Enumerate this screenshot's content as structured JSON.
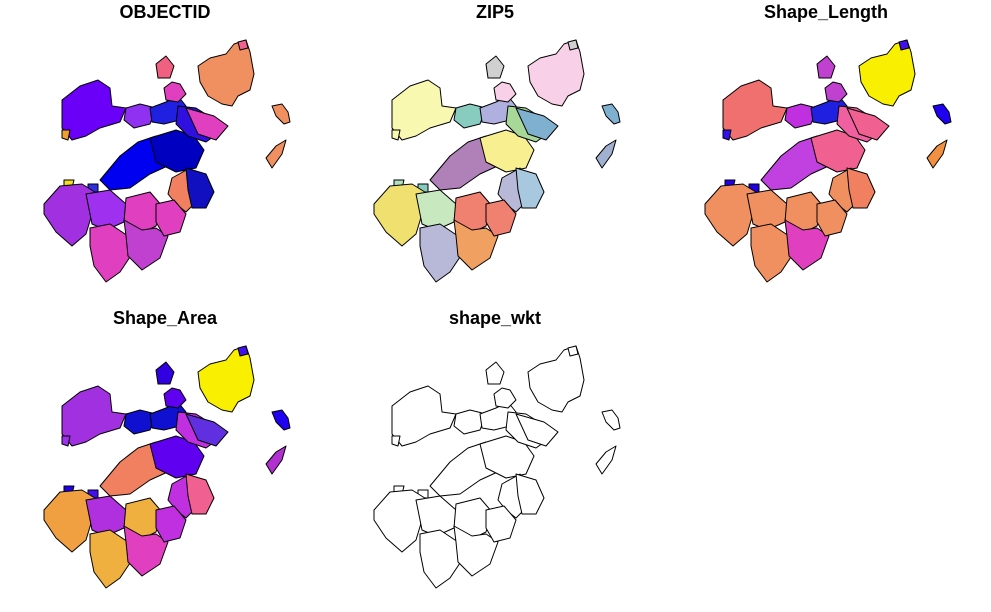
{
  "map": {
    "panels": [
      {
        "title": "OBJECTID",
        "palette": "sf_default"
      },
      {
        "title": "ZIP5",
        "palette": "categorical"
      },
      {
        "title": "Shape_Length",
        "palette": "sf_default"
      },
      {
        "title": "Shape_Area",
        "palette": "sf_default"
      },
      {
        "title": "shape_wkt",
        "palette": "none"
      }
    ],
    "regions": [
      "north-west-peninsula",
      "small-island",
      "center-north-1",
      "center-north-2",
      "center-north-3",
      "north-east-small",
      "north-east-large",
      "north-east-top",
      "far-east-island",
      "south-east-island",
      "central-1",
      "central-2",
      "central-3",
      "east-1",
      "east-2",
      "west-tiny-1",
      "west-tiny-2",
      "west-1",
      "south-west-1",
      "south-west-2",
      "south-1",
      "south-2",
      "south-3",
      "south-east-1"
    ],
    "fills": {
      "OBJECTID": [
        "#6a00f8",
        "#f0a030",
        "#9030f0",
        "#2020e0",
        "#e040c0",
        "#f06080",
        "#f09060",
        "#f06090",
        "#f09060",
        "#f09060",
        "#0000f0",
        "#0000c0",
        "#3010e0",
        "#e040c0",
        "#f08060",
        "#3030e0",
        "#f0e020",
        "#a030e0",
        "#a030f0",
        "#e040c0",
        "#e040c0",
        "#c040d0",
        "#e040c0",
        "#1010c0"
      ],
      "ZIP5": [
        "#f8f8b0",
        "#f8f8b0",
        "#88ccc0",
        "#b0b0e0",
        "#f8d0e8",
        "#d0d0d0",
        "#f8d0e8",
        "#d0d0d0",
        "#80b0d0",
        "#a0b0d0",
        "#b080b8",
        "#f8f090",
        "#a8d898",
        "#80b0d0",
        "#b8b8d8",
        "#88ccc0",
        "#b0e0c0",
        "#f0e070",
        "#c8e8c0",
        "#f08070",
        "#b8b8d8",
        "#f0a060",
        "#f08070",
        "#a8c8e0"
      ],
      "Shape_Length": [
        "#f07070",
        "#3010f0",
        "#c030e0",
        "#2020e0",
        "#c040d0",
        "#c040d0",
        "#f8f000",
        "#4010f0",
        "#2000f0",
        "#f09040",
        "#c040e0",
        "#f06090",
        "#f060a0",
        "#f06090",
        "#f09060",
        "#2000e0",
        "#2000f0",
        "#f09060",
        "#f09060",
        "#f09060",
        "#f09060",
        "#e040c0",
        "#f09060",
        "#f08060"
      ],
      "Shape_Area": [
        "#a030e0",
        "#a030f0",
        "#1010d0",
        "#1010d0",
        "#6000f0",
        "#3000e0",
        "#f8f000",
        "#4010f0",
        "#2000f0",
        "#b030d0",
        "#f08060",
        "#6000f0",
        "#c030e0",
        "#6030e0",
        "#c030e0",
        "#4010f0",
        "#2000f0",
        "#f0a040",
        "#b030e0",
        "#f0b040",
        "#f0b040",
        "#e040c0",
        "#c030e0",
        "#f06090"
      ],
      "shape_wkt": [
        "#ffffff",
        "#ffffff",
        "#ffffff",
        "#ffffff",
        "#ffffff",
        "#ffffff",
        "#ffffff",
        "#ffffff",
        "#ffffff",
        "#ffffff",
        "#ffffff",
        "#ffffff",
        "#ffffff",
        "#ffffff",
        "#ffffff",
        "#ffffff",
        "#ffffff",
        "#ffffff",
        "#ffffff",
        "#ffffff",
        "#ffffff",
        "#ffffff",
        "#ffffff",
        "#ffffff"
      ]
    }
  }
}
